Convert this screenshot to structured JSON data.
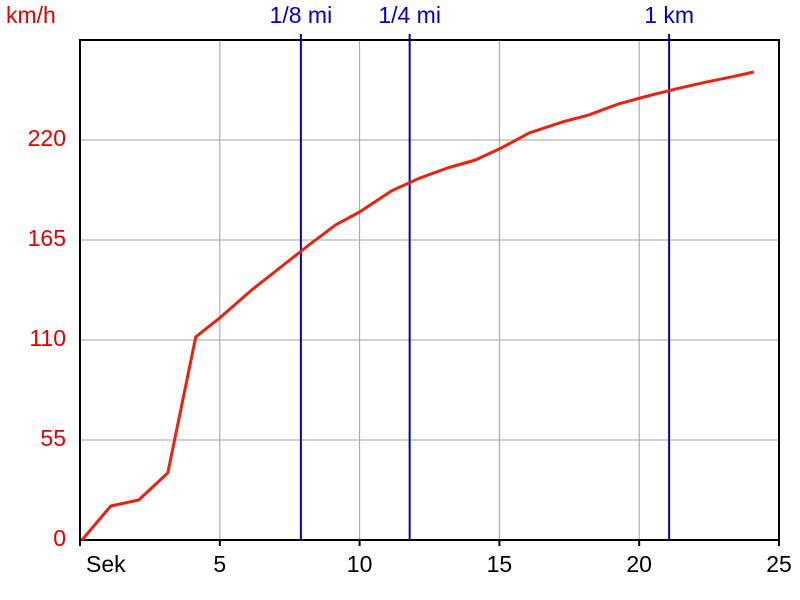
{
  "chart_data": {
    "type": "line",
    "ylabel": "km/h",
    "x": [
      0.07,
      1.1,
      2.1,
      3.14,
      4.14,
      5.04,
      6.14,
      7.14,
      8.14,
      9.14,
      10.0,
      11.14,
      12.14,
      13.14,
      14.14,
      15.07,
      16.07,
      17.25,
      18.2,
      19.25,
      20.3,
      21.3,
      22.25,
      23.3,
      24.1
    ],
    "series": [
      {
        "color": "#e8230f",
        "values": [
          0,
          18.7,
          22,
          36.9,
          111.7,
          122.7,
          137.5,
          149.6,
          161.7,
          173.3,
          180.4,
          192,
          199,
          204.6,
          209,
          215.6,
          223.9,
          229.9,
          233.8,
          239.8,
          244.2,
          248,
          251.4,
          254.7,
          257.4
        ]
      }
    ],
    "xlim": [
      0,
      25
    ],
    "xticks": [
      {
        "value": 0,
        "label": "Sek"
      },
      5,
      10,
      15,
      20,
      25
    ],
    "ylim": [
      0,
      275
    ],
    "yticks": [
      0,
      55,
      110,
      165,
      220
    ],
    "grid": true,
    "ytick_color": "#e00000",
    "marker_color": "#0000c0",
    "markers": [
      {
        "label": "1/8 mi",
        "x": 7.9
      },
      {
        "label": "1/4 mi",
        "x": 11.79
      },
      {
        "label": "1 km",
        "x": 21.07
      }
    ]
  }
}
